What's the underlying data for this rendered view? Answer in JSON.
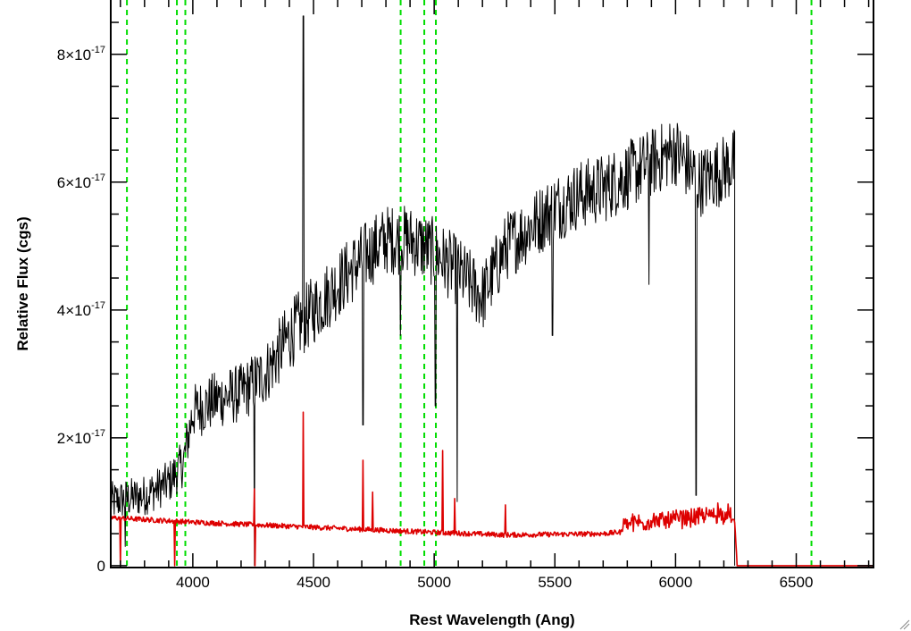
{
  "chart_data": {
    "type": "line",
    "title": "",
    "xlabel": "Rest Wavelength (Ang)",
    "ylabel": "Relative Flux (cgs)",
    "xlim": [
      3660,
      6820
    ],
    "ylim": [
      -3e-19,
      8.85e-17
    ],
    "grid": false,
    "legend": "none",
    "x_ticks": [
      4000,
      4500,
      5000,
      5500,
      6000,
      6500
    ],
    "y_ticks": [
      {
        "value": 0,
        "mantissa": "0",
        "times": "",
        "base": "",
        "exponent": ""
      },
      {
        "value": 2e-17,
        "mantissa": "2",
        "times": "×",
        "base": "10",
        "exponent": "-17"
      },
      {
        "value": 4e-17,
        "mantissa": "4",
        "times": "×",
        "base": "10",
        "exponent": "-17"
      },
      {
        "value": 6e-17,
        "mantissa": "6",
        "times": "×",
        "base": "10",
        "exponent": "-17"
      },
      {
        "value": 8e-17,
        "mantissa": "8",
        "times": "×",
        "base": "10",
        "exponent": "-17"
      }
    ],
    "reference_lines": {
      "x": [
        3727,
        3934,
        3969,
        4861,
        4959,
        5007,
        6563
      ],
      "color": "#00dd00",
      "style": "dashed"
    },
    "series": [
      {
        "color": "#000000",
        "noise": 5.5e-18,
        "x_range": [
          3660,
          6245
        ],
        "trend": [
          [
            3660,
            1e-17
          ],
          [
            3800,
            1.1e-17
          ],
          [
            3900,
            1.3e-17
          ],
          [
            3960,
            1.6e-17
          ],
          [
            4000,
            2.4e-17
          ],
          [
            4100,
            2.6e-17
          ],
          [
            4200,
            2.7e-17
          ],
          [
            4300,
            3e-17
          ],
          [
            4400,
            3.6e-17
          ],
          [
            4500,
            4e-17
          ],
          [
            4600,
            4.4e-17
          ],
          [
            4700,
            4.8e-17
          ],
          [
            4800,
            5.1e-17
          ],
          [
            4900,
            5.1e-17
          ],
          [
            5000,
            4.9e-17
          ],
          [
            5100,
            4.6e-17
          ],
          [
            5200,
            4.2e-17
          ],
          [
            5300,
            5e-17
          ],
          [
            5400,
            5.3e-17
          ],
          [
            5500,
            5.6e-17
          ],
          [
            5600,
            5.8e-17
          ],
          [
            5700,
            5.9e-17
          ],
          [
            5800,
            6.1e-17
          ],
          [
            5900,
            6.3e-17
          ],
          [
            6000,
            6.5e-17
          ],
          [
            6100,
            6e-17
          ],
          [
            6200,
            6.2e-17
          ],
          [
            6245,
            6.3e-17
          ]
        ],
        "features": [
          [
            3720,
            3e-18
          ],
          [
            4255,
            0.0
          ],
          [
            4458,
            8.6e-17
          ],
          [
            4705,
            2.2e-17
          ],
          [
            4860,
            3.6e-17
          ],
          [
            5005,
            2.5e-17
          ],
          [
            5095,
            1e-17
          ],
          [
            5490,
            3.6e-17
          ],
          [
            5890,
            4.4e-17
          ],
          [
            6085,
            1.1e-17
          ]
        ],
        "drop": [
          6245,
          0
        ]
      },
      {
        "color": "#dd0000",
        "noise": 4e-19,
        "x_range": [
          3660,
          6820
        ],
        "trend": [
          [
            3660,
            7.5e-18
          ],
          [
            4000,
            6.8e-18
          ],
          [
            4500,
            6e-18
          ],
          [
            5000,
            5.2e-18
          ],
          [
            5300,
            4.8e-18
          ],
          [
            5700,
            5e-18
          ],
          [
            6000,
            6e-18
          ],
          [
            6245,
            7e-18
          ],
          [
            6255,
            0.0
          ],
          [
            6820,
            0.0
          ]
        ],
        "features": [
          [
            3700,
            0.0
          ],
          [
            3925,
            0.0
          ],
          [
            4255,
            1.2e-17
          ],
          [
            4258,
            0.0
          ],
          [
            4458,
            2.4e-17
          ],
          [
            4705,
            1.65e-17
          ],
          [
            4745,
            1.15e-17
          ],
          [
            5035,
            1.8e-17
          ],
          [
            5085,
            1.05e-17
          ],
          [
            5295,
            9.5e-18
          ],
          [
            6175,
            9.5e-18
          ]
        ],
        "drop": []
      }
    ]
  }
}
